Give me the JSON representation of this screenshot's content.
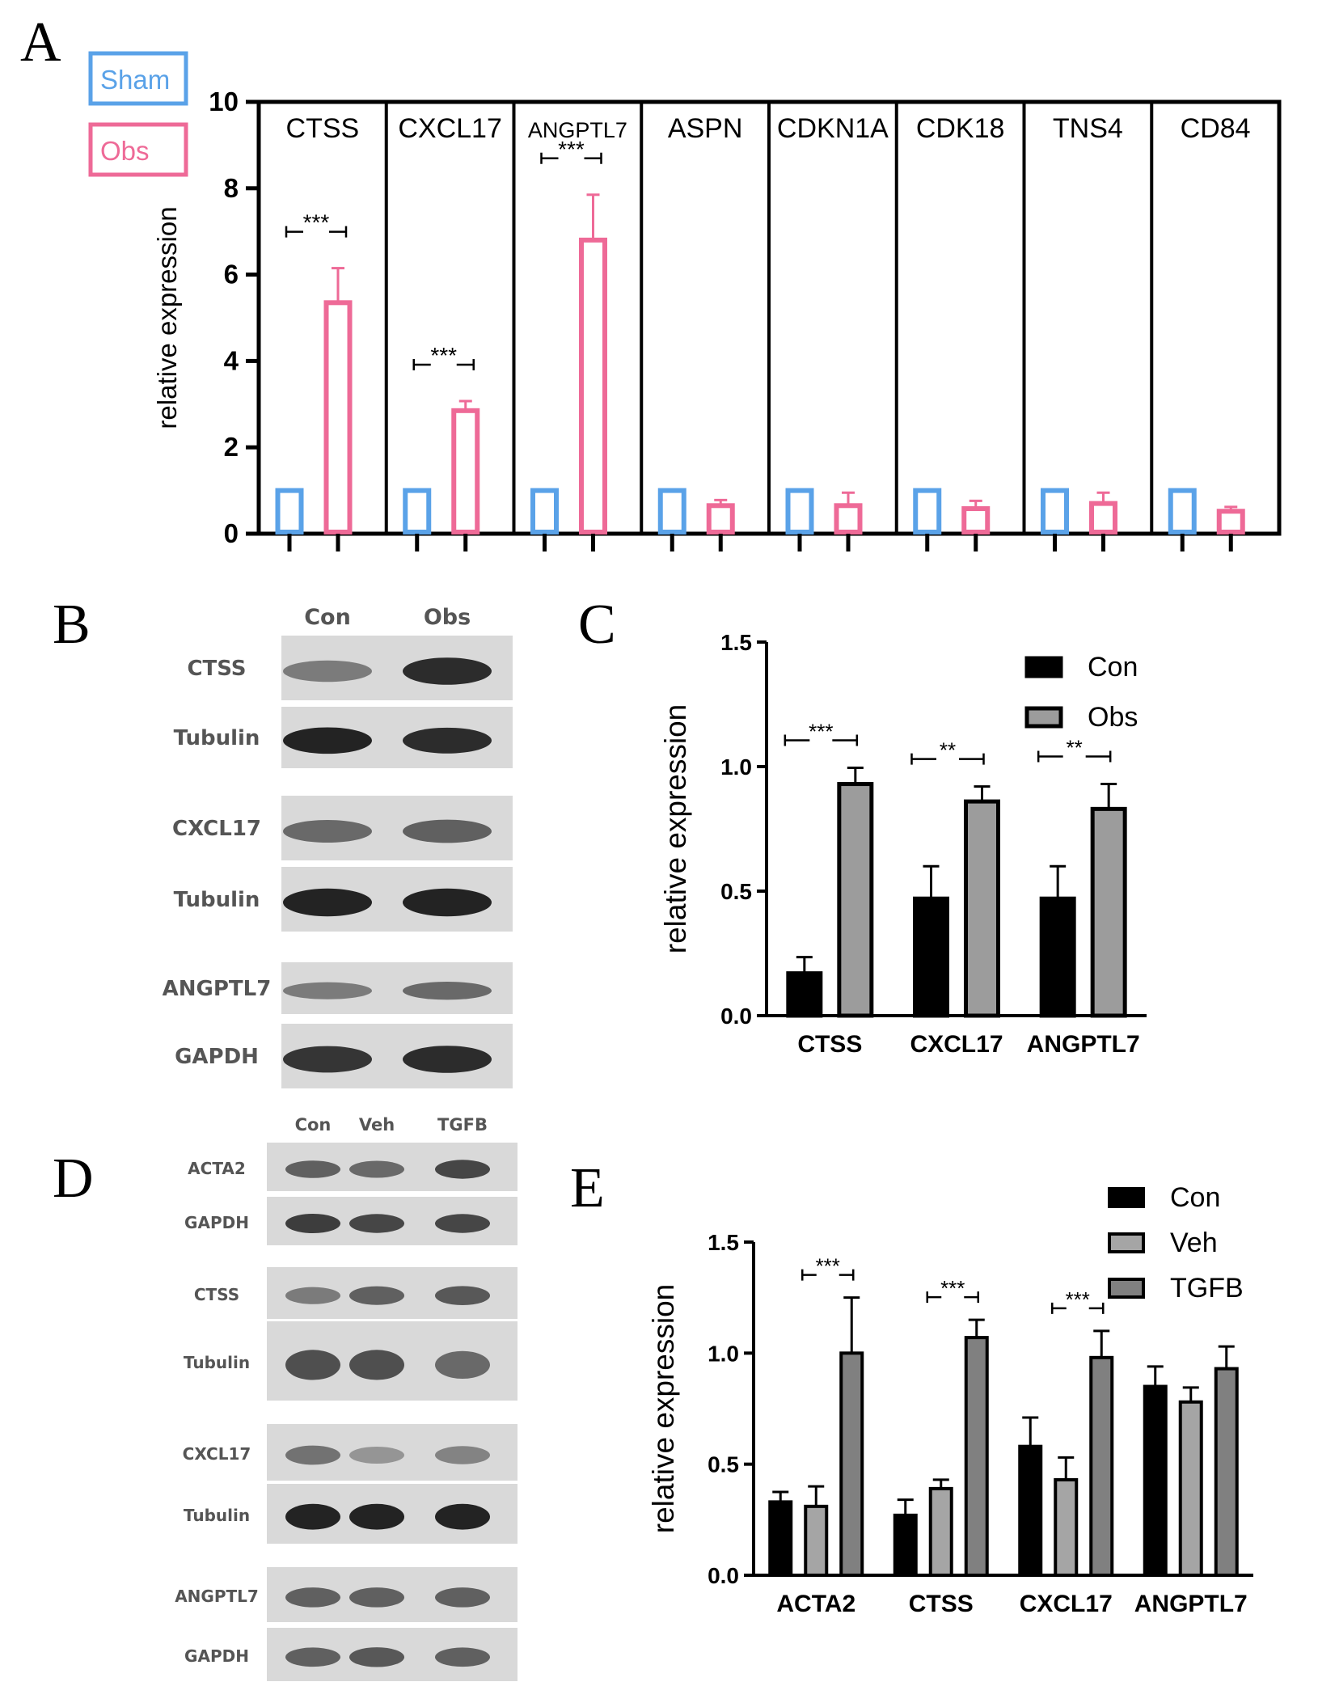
{
  "panel_letters": [
    "A",
    "B",
    "C",
    "D",
    "E"
  ],
  "colors": {
    "sham": "#5aa2e8",
    "obs": "#ee6a97",
    "con": "#000000",
    "veh": "#a5a5a5",
    "tgfb": "#808080",
    "obs_gray": "#9c9c9c"
  },
  "blot_b": {
    "columns": [
      "Con",
      "Obs"
    ],
    "rows": [
      "CTSS",
      "Tubulin",
      "CXCL17",
      "Tubulin",
      "ANGPTL7",
      "GAPDH"
    ],
    "intensity": [
      [
        0.45,
        0.9
      ],
      [
        0.95,
        0.9
      ],
      [
        0.55,
        0.6
      ],
      [
        0.95,
        0.95
      ],
      [
        0.45,
        0.55
      ],
      [
        0.85,
        0.9
      ]
    ]
  },
  "blot_d": {
    "columns": [
      "Con",
      "Veh",
      "TGFB"
    ],
    "rows": [
      "ACTA2",
      "GAPDH",
      "CTSS",
      "Tubulin",
      "CXCL17",
      "Tubulin",
      "ANGPTL7",
      "GAPDH"
    ],
    "intensity": [
      [
        0.6,
        0.55,
        0.75
      ],
      [
        0.8,
        0.75,
        0.75
      ],
      [
        0.45,
        0.6,
        0.65
      ],
      [
        0.7,
        0.7,
        0.55
      ],
      [
        0.5,
        0.3,
        0.4
      ],
      [
        0.95,
        0.95,
        0.95
      ],
      [
        0.6,
        0.6,
        0.6
      ],
      [
        0.6,
        0.65,
        0.6
      ]
    ]
  },
  "chart_data": [
    {
      "panel": "A",
      "type": "bar",
      "ylabel": "relative expression",
      "ylim": [
        0,
        10
      ],
      "yticks": [
        "0",
        "2",
        "4",
        "6",
        "8",
        "10"
      ],
      "categories": [
        "CTSS",
        "CXCL17",
        "ANGPTL7",
        "ASPN",
        "CDKN1A",
        "CDK18",
        "TNS4",
        "CD84"
      ],
      "series": [
        {
          "name": "Sham",
          "values": [
            1,
            1,
            1,
            1,
            1,
            1,
            1,
            1
          ],
          "errors": [
            0,
            0,
            0,
            0,
            0,
            0,
            0,
            0
          ]
        },
        {
          "name": "Obs",
          "values": [
            5.35,
            2.85,
            6.8,
            0.65,
            0.65,
            0.58,
            0.7,
            0.52
          ],
          "errors": [
            0.8,
            0.22,
            1.05,
            0.13,
            0.3,
            0.18,
            0.25,
            0.1
          ]
        }
      ],
      "significance": [
        {
          "category": "CTSS",
          "label": "***"
        },
        {
          "category": "CXCL17",
          "label": "***"
        },
        {
          "category": "ANGPTL7",
          "label": "***"
        }
      ],
      "legend": "top-left, outside"
    },
    {
      "panel": "C",
      "type": "bar",
      "ylabel": "relative expression",
      "ylim": [
        0,
        1.5
      ],
      "yticks": [
        "0.0",
        "0.5",
        "1.0",
        "1.5"
      ],
      "categories": [
        "CTSS",
        "CXCL17",
        "ANGPTL7"
      ],
      "series": [
        {
          "name": "Con",
          "values": [
            0.17,
            0.47,
            0.47
          ],
          "errors": [
            0.065,
            0.13,
            0.13
          ]
        },
        {
          "name": "Obs",
          "values": [
            0.93,
            0.86,
            0.83
          ],
          "errors": [
            0.065,
            0.06,
            0.1
          ]
        }
      ],
      "significance": [
        {
          "category": "CTSS",
          "label": "***"
        },
        {
          "category": "CXCL17",
          "label": "**"
        },
        {
          "category": "ANGPTL7",
          "label": "**"
        }
      ],
      "legend": "top-right"
    },
    {
      "panel": "E",
      "type": "bar",
      "ylabel": "relative expression",
      "ylim": [
        0,
        1.5
      ],
      "yticks": [
        "0.0",
        "0.5",
        "1.0",
        "1.5"
      ],
      "categories": [
        "ACTA2",
        "CTSS",
        "CXCL17",
        "ANGPTL7"
      ],
      "series": [
        {
          "name": "Con",
          "values": [
            0.33,
            0.27,
            0.58,
            0.85
          ],
          "errors": [
            0.045,
            0.07,
            0.13,
            0.09
          ]
        },
        {
          "name": "Veh",
          "values": [
            0.31,
            0.39,
            0.43,
            0.78
          ],
          "errors": [
            0.09,
            0.04,
            0.1,
            0.065
          ]
        },
        {
          "name": "TGFB",
          "values": [
            1.0,
            1.07,
            0.98,
            0.93
          ],
          "errors": [
            0.25,
            0.08,
            0.12,
            0.1
          ]
        }
      ],
      "significance": [
        {
          "category": "ACTA2",
          "label": "***"
        },
        {
          "category": "CTSS",
          "label": "***"
        },
        {
          "category": "CXCL17",
          "label": "***"
        }
      ],
      "legend": "top-right"
    }
  ]
}
